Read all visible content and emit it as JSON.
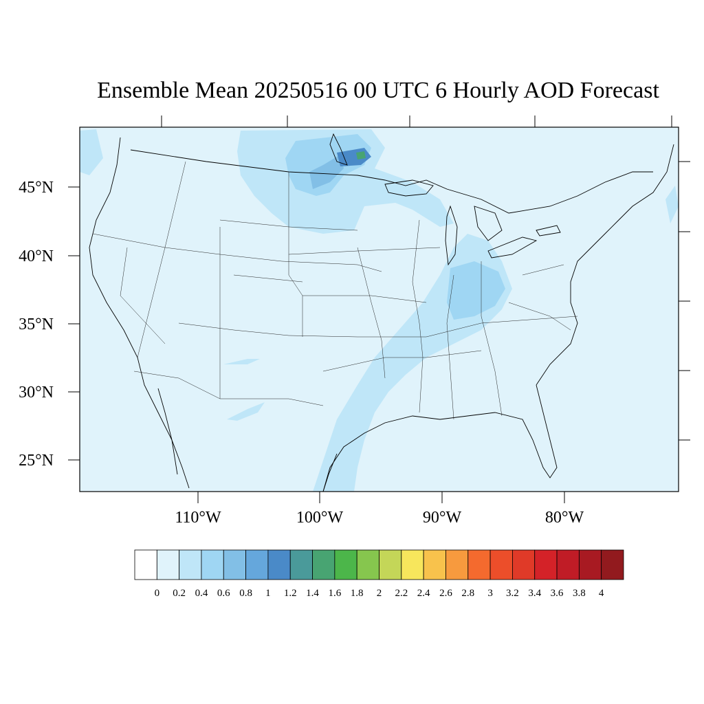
{
  "title": "Ensemble Mean 20250516 00 UTC 6 Hourly AOD Forecast",
  "map": {
    "ocean_color": "#e0f3fb",
    "land_color": "#e0f3fb",
    "lat_labels": [
      "45°N",
      "40°N",
      "35°N",
      "30°N",
      "25°N"
    ],
    "lon_labels": [
      "110°W",
      "100°W",
      "90°W",
      "80°W"
    ]
  },
  "plumes": [
    {
      "name": "canada-smoke-outer",
      "value": "0.2-0.4"
    },
    {
      "name": "canada-smoke-core",
      "value": "0.8-1.2"
    },
    {
      "name": "gulf-to-ohio-valley-band",
      "value": "0.2-0.4"
    }
  ],
  "colorbar": {
    "labels": [
      "0",
      "0.2",
      "0.4",
      "0.6",
      "0.8",
      "1",
      "1.2",
      "1.4",
      "1.6",
      "1.8",
      "2",
      "2.2",
      "2.4",
      "2.6",
      "2.8",
      "3",
      "3.2",
      "3.4",
      "3.6",
      "3.8",
      "4"
    ],
    "colors": [
      "#ffffff",
      "#e0f3fb",
      "#bfe6f8",
      "#9fd6f3",
      "#82bfe6",
      "#65a7dc",
      "#4a8ac8",
      "#4a9a9a",
      "#48a472",
      "#4cb64a",
      "#86c64e",
      "#c4d658",
      "#f7e65c",
      "#f8c24c",
      "#f79a3e",
      "#f46a2e",
      "#ec4e2a",
      "#e03a28",
      "#d42228",
      "#c01c26",
      "#a81a22",
      "#921a1e"
    ]
  }
}
